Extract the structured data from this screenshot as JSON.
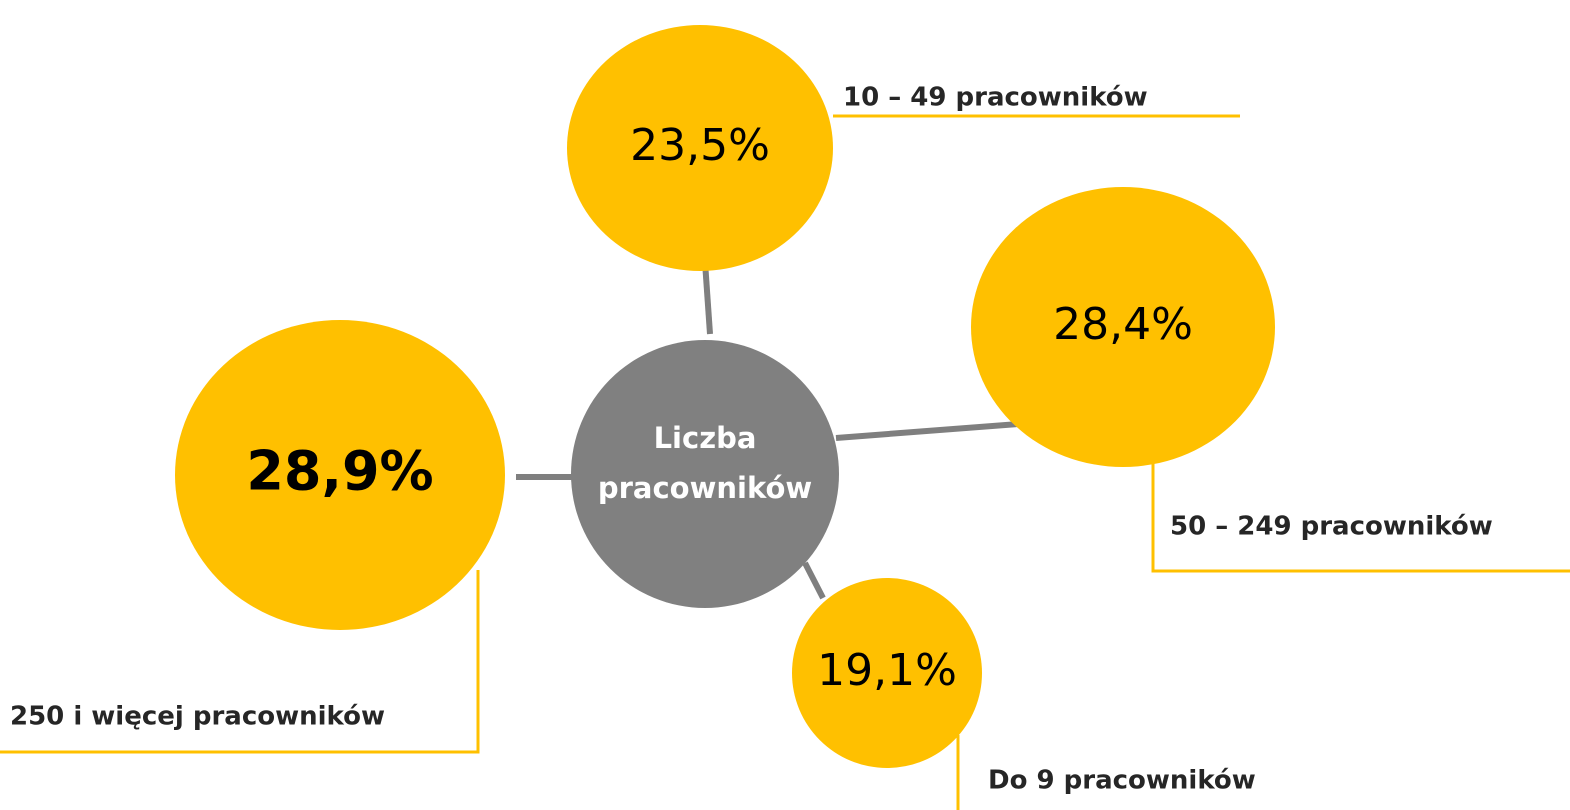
{
  "center": {
    "lines": [
      "Liczba",
      "pracowników"
    ]
  },
  "nodes": [
    {
      "value": "23,5%",
      "label": "10 – 49 pracowników"
    },
    {
      "value": "28,4%",
      "label": "50 – 249 pracowników"
    },
    {
      "value": "28,9%",
      "label": "250 i więcej pracowników"
    },
    {
      "value": "19,1%",
      "label": "Do 9 pracowników"
    }
  ]
}
